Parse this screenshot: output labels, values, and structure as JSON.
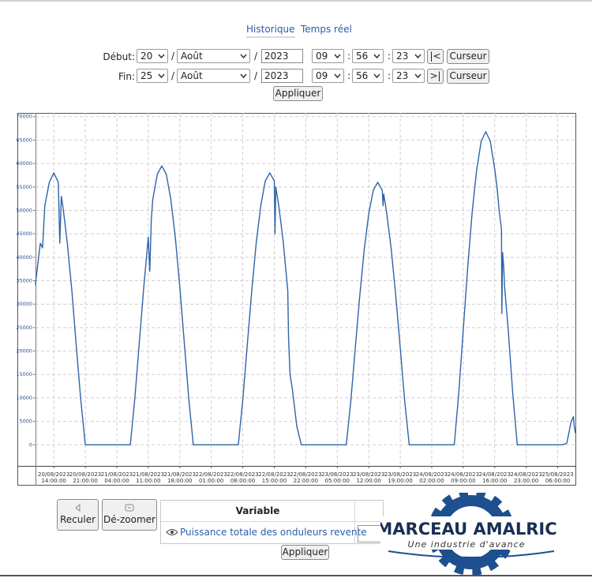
{
  "tabs": [
    "Historique",
    "Temps réel"
  ],
  "form": {
    "date_separator": "/",
    "time_separator": ":",
    "rows": [
      {
        "label": "Début:",
        "day": "20",
        "month": "Août",
        "year": "2023",
        "hour": "09",
        "minute": "56",
        "second": "23",
        "nav": "|<",
        "cursor": "Curseur"
      },
      {
        "label": "Fin:",
        "day": "25",
        "month": "Août",
        "year": "2023",
        "hour": "09",
        "minute": "56",
        "second": "23",
        "nav": ">|",
        "cursor": "Curseur"
      }
    ],
    "apply": "Appliquer"
  },
  "chart_data": {
    "type": "line",
    "color": "#2e64a8",
    "grid": true,
    "ylim": [
      -4500,
      70800
    ],
    "yticks": [
      0,
      5000,
      10000,
      15000,
      20000,
      25000,
      30000,
      35000,
      40000,
      45000,
      50000,
      55000,
      60000,
      65000,
      70000
    ],
    "xlim": [
      "20/08/2023 09:56:00",
      "25/08/2023 09:56:00"
    ],
    "xticks": [
      "20/08/2023 14:00:00",
      "20/08/2023 21:00:00",
      "21/08/2023 04:00:00",
      "21/08/2023 11:00:00",
      "21/08/2023 18:00:00",
      "22/08/2023 01:00:00",
      "22/08/2023 08:00:00",
      "22/08/2023 15:00:00",
      "22/08/2023 22:00:00",
      "23/08/2023 05:00:00",
      "23/08/2023 12:00:00",
      "23/08/2023 19:00:00",
      "24/08/2023 02:00:00",
      "24/08/2023 09:00:00",
      "24/08/2023 16:00:00",
      "24/08/2023 23:00:00",
      "25/08/2023 06:00:00"
    ],
    "x": [
      "20/08/2023 09:56:00",
      "20/08/2023 10:00:00",
      "20/08/2023 11:00:00",
      "20/08/2023 11:30:00",
      "20/08/2023 12:00:00",
      "20/08/2023 13:00:00",
      "20/08/2023 14:00:00",
      "20/08/2023 15:00:00",
      "20/08/2023 15:20:00",
      "20/08/2023 15:40:00",
      "20/08/2023 16:00:00",
      "20/08/2023 17:00:00",
      "20/08/2023 18:00:00",
      "20/08/2023 19:00:00",
      "20/08/2023 20:00:00",
      "20/08/2023 21:00:00",
      "21/08/2023 07:00:00",
      "21/08/2023 08:00:00",
      "21/08/2023 09:00:00",
      "21/08/2023 10:00:00",
      "21/08/2023 11:00:00",
      "21/08/2023 11:20:00",
      "21/08/2023 11:40:00",
      "21/08/2023 12:00:00",
      "21/08/2023 13:00:00",
      "21/08/2023 14:00:00",
      "21/08/2023 15:00:00",
      "21/08/2023 16:00:00",
      "21/08/2023 17:00:00",
      "21/08/2023 18:00:00",
      "21/08/2023 19:00:00",
      "21/08/2023 20:00:00",
      "21/08/2023 21:00:00",
      "22/08/2023 07:00:00",
      "22/08/2023 08:00:00",
      "22/08/2023 09:00:00",
      "22/08/2023 10:00:00",
      "22/08/2023 11:00:00",
      "22/08/2023 12:00:00",
      "22/08/2023 13:00:00",
      "22/08/2023 14:00:00",
      "22/08/2023 15:00:00",
      "22/08/2023 15:10:00",
      "22/08/2023 15:20:00",
      "22/08/2023 16:00:00",
      "22/08/2023 17:00:00",
      "22/08/2023 18:00:00",
      "22/08/2023 18:10:00",
      "22/08/2023 18:30:00",
      "22/08/2023 19:00:00",
      "22/08/2023 20:00:00",
      "22/08/2023 21:00:00",
      "23/08/2023 07:00:00",
      "23/08/2023 08:00:00",
      "23/08/2023 09:00:00",
      "23/08/2023 10:00:00",
      "23/08/2023 11:00:00",
      "23/08/2023 12:00:00",
      "23/08/2023 13:00:00",
      "23/08/2023 14:00:00",
      "23/08/2023 15:00:00",
      "23/08/2023 15:10:00",
      "23/08/2023 15:20:00",
      "23/08/2023 16:00:00",
      "23/08/2023 17:00:00",
      "23/08/2023 18:00:00",
      "23/08/2023 19:00:00",
      "23/08/2023 20:00:00",
      "23/08/2023 21:00:00",
      "24/08/2023 07:00:00",
      "24/08/2023 08:00:00",
      "24/08/2023 09:00:00",
      "24/08/2023 10:00:00",
      "24/08/2023 11:00:00",
      "24/08/2023 12:00:00",
      "24/08/2023 13:00:00",
      "24/08/2023 14:00:00",
      "24/08/2023 15:00:00",
      "24/08/2023 16:00:00",
      "24/08/2023 16:30:00",
      "24/08/2023 17:00:00",
      "24/08/2023 17:30:00",
      "24/08/2023 17:35:00",
      "24/08/2023 17:45:00",
      "24/08/2023 18:00:00",
      "24/08/2023 18:10:00",
      "24/08/2023 19:00:00",
      "24/08/2023 20:00:00",
      "24/08/2023 21:00:00",
      "25/08/2023 07:00:00",
      "25/08/2023 08:00:00",
      "25/08/2023 09:00:00",
      "25/08/2023 09:30:00",
      "25/08/2023 09:40:00",
      "25/08/2023 09:56:00"
    ],
    "values": [
      34000,
      35000,
      43000,
      42000,
      51000,
      56000,
      58000,
      56000,
      43000,
      53000,
      51000,
      43000,
      33000,
      21000,
      9500,
      0,
      0,
      9800,
      21800,
      33700,
      44300,
      37000,
      48000,
      52400,
      57700,
      59500,
      57700,
      52400,
      44300,
      33700,
      21800,
      9800,
      0,
      0,
      9600,
      21300,
      32900,
      43200,
      51000,
      56300,
      58000,
      56300,
      45000,
      55000,
      51000,
      43200,
      32900,
      23000,
      15000,
      12000,
      4000,
      0,
      0,
      9200,
      20600,
      31800,
      41700,
      49300,
      54300,
      56000,
      54300,
      51000,
      53500,
      49300,
      41700,
      31800,
      20600,
      9200,
      0,
      0,
      11000,
      24500,
      37900,
      49800,
      58800,
      64800,
      66800,
      64800,
      58800,
      55000,
      49800,
      46000,
      28000,
      41000,
      37900,
      34000,
      24500,
      11000,
      0,
      0,
      300,
      5000,
      6000,
      4000,
      2500
    ]
  },
  "controls": {
    "back": "Reculer",
    "unzoom": "Dé-zoomer"
  },
  "variables": {
    "header": "Variable",
    "rows": [
      "Puissance totale des onduleurs revente"
    ],
    "apply": "Appliquer"
  },
  "logo": {
    "name": "MARCEAU AMALRIC",
    "tagline": "Une industrie d'avance"
  }
}
